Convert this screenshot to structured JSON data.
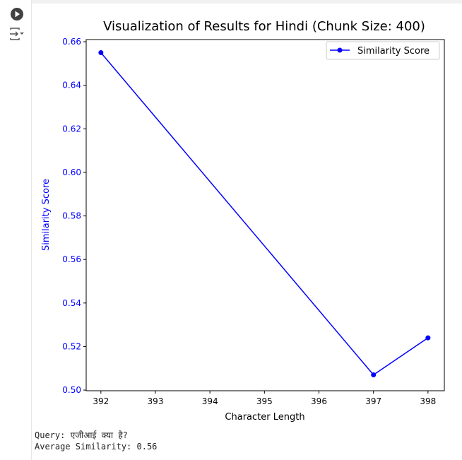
{
  "cell": {
    "run_icon": "play-circle-icon",
    "output_icon": "output-toggle-icon"
  },
  "chart_data": {
    "type": "line",
    "title": "Visualization of Results for Hindi (Chunk Size: 400)",
    "xlabel": "Character Length",
    "ylabel": "Similarity Score",
    "x": [
      392,
      397,
      398
    ],
    "series": [
      {
        "name": "Similarity Score",
        "values": [
          0.655,
          0.507,
          0.524
        ],
        "color": "#0000ff",
        "marker": "circle"
      }
    ],
    "xlim": [
      391.73,
      398.3
    ],
    "ylim": [
      0.4997,
      0.661
    ],
    "xticks": [
      "392",
      "393",
      "394",
      "395",
      "396",
      "397",
      "398"
    ],
    "yticks": [
      "0.50",
      "0.52",
      "0.54",
      "0.56",
      "0.58",
      "0.60",
      "0.62",
      "0.64",
      "0.66"
    ],
    "ytick_color": "#0000ff",
    "grid": false,
    "legend": "top-right"
  },
  "output": {
    "query": "Query: एजीआई क्या है?",
    "average": "Average Similarity: 0.56"
  }
}
